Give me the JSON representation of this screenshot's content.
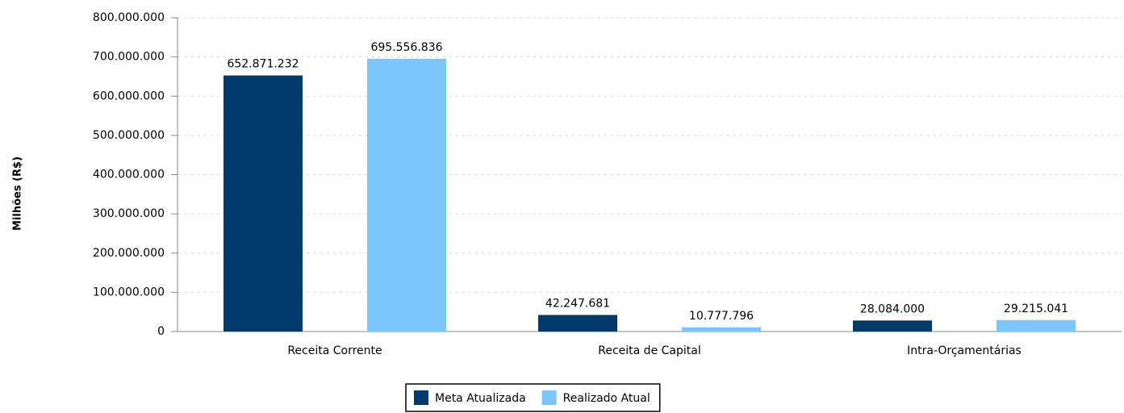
{
  "chart_data": {
    "type": "bar",
    "y_label": "Milhões (R$)",
    "categories": [
      "Receita Corrente",
      "Receita de Capital",
      "Intra-Orçamentárias"
    ],
    "series": [
      {
        "name": "Meta Atualizada",
        "color": "#003a6c",
        "values": [
          652871232,
          42247681,
          28084000
        ],
        "value_labels": [
          "652.871.232",
          "42.247.681",
          "28.084.000"
        ]
      },
      {
        "name": "Realizado Atual",
        "color": "#7bc6fc",
        "values": [
          695556836,
          10777796,
          29215041
        ],
        "value_labels": [
          "695.556.836",
          "10.777.796",
          "29.215.041"
        ]
      }
    ],
    "ylim": [
      0,
      800000000
    ],
    "yticks": [
      0,
      {
        "value": 100000000,
        "label": "100.000.000"
      },
      {
        "value": 200000000,
        "label": "200.000.000"
      },
      {
        "value": 300000000,
        "label": "300.000.000"
      },
      {
        "value": 400000000,
        "label": "400.000.000"
      },
      {
        "value": 500000000,
        "label": "500.000.000"
      },
      {
        "value": 600000000,
        "label": "600.000.000"
      },
      {
        "value": 700000000,
        "label": "700.000.000"
      },
      {
        "value": 800000000,
        "label": "800.000.000"
      }
    ],
    "grid": true,
    "legend": "bottom"
  }
}
